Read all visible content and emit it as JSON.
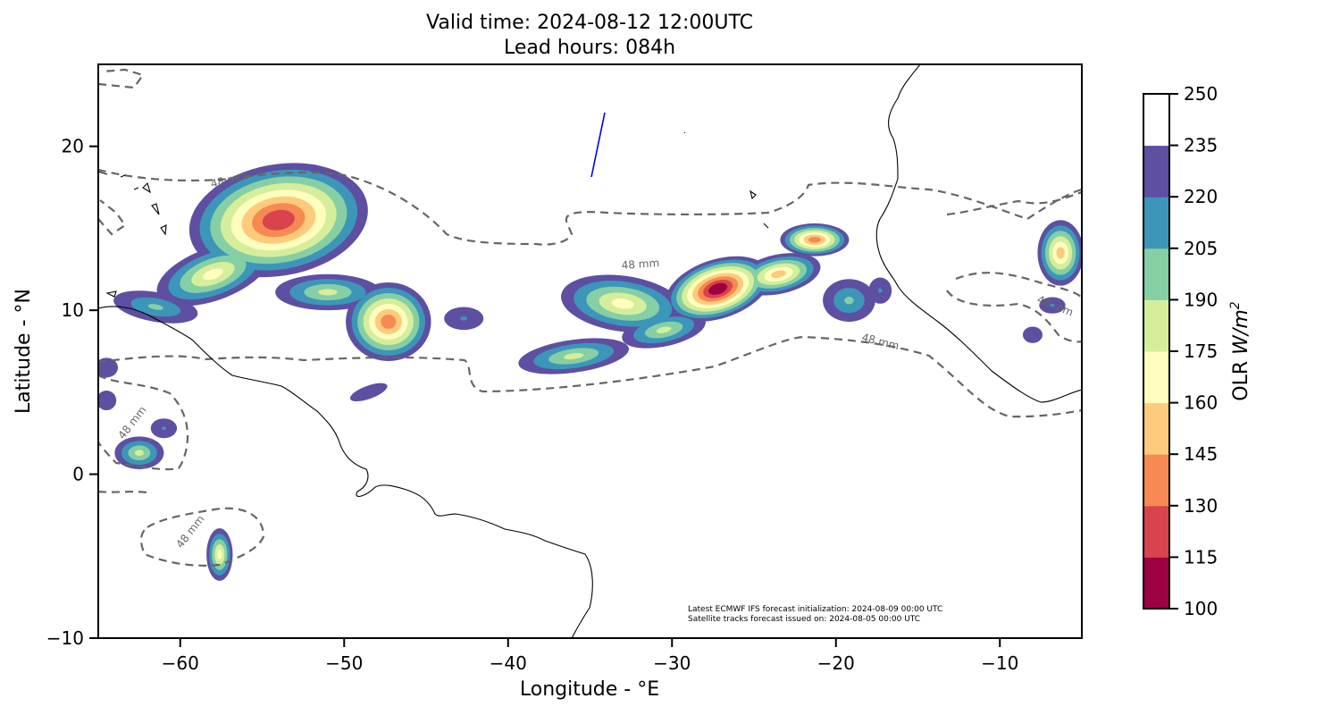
{
  "title": {
    "line1": "Valid time: 2024-08-12 12:00UTC",
    "line2": "Lead hours: 084h"
  },
  "map": {
    "extent": {
      "lon": [
        -65,
        -5
      ],
      "lat": [
        -10,
        25
      ]
    },
    "xlabel": "Longitude - °E",
    "ylabel": "Latitude - °N",
    "xticks": [
      -60,
      -50,
      -40,
      -30,
      -20,
      -10
    ],
    "yticks": [
      -10,
      0,
      10,
      20
    ],
    "xtick_labels": [
      "−60",
      "−50",
      "−40",
      "−30",
      "−20",
      "−10"
    ],
    "ytick_labels": [
      "−10",
      "0",
      "10",
      "20"
    ],
    "contour_label": "48 mm",
    "contour_color": "#666666",
    "coastline_color": "#000000",
    "track_color": "#0000ee",
    "notes": [
      "Latest ECMWF IFS forecast initialization: 2024-08-09 00:00 UTC",
      "Satellite tracks forecast issued on: 2024-08-05 00:00 UTC"
    ]
  },
  "colorbar": {
    "label": "OLR W/m²",
    "label_main": "OLR ",
    "label_unit": "W/m",
    "label_exp": "2",
    "levels": [
      100,
      115,
      130,
      145,
      160,
      175,
      190,
      205,
      220,
      235,
      250
    ],
    "level_labels": [
      "100",
      "115",
      "130",
      "145",
      "160",
      "175",
      "190",
      "205",
      "220",
      "235",
      "250"
    ],
    "colors": [
      "#9e0142",
      "#d8434e",
      "#f68a52",
      "#fdcb7b",
      "#feffbe",
      "#d6ee9b",
      "#86cfa5",
      "#3c96b9",
      "#5e4fa2",
      "#ffffff"
    ]
  },
  "chart_data": {
    "type": "heatmap",
    "title": "Valid time: 2024-08-12 12:00UTC\nLead hours: 084h",
    "xlabel": "Longitude - °E",
    "ylabel": "Latitude - °N",
    "xlim": [
      -65,
      -5
    ],
    "ylim": [
      -10,
      25
    ],
    "colorbar_label": "OLR W/m²",
    "levels": [
      100,
      115,
      130,
      145,
      160,
      175,
      190,
      205,
      220,
      235,
      250
    ],
    "contour_level": "48 mm",
    "grid": false,
    "features": [
      {
        "name": "convective cluster",
        "lon": -53.5,
        "lat": 16,
        "min_olr": 115
      },
      {
        "name": "convective cluster",
        "lon": -47,
        "lat": 8.5,
        "min_olr": 130
      },
      {
        "name": "convective cluster",
        "lon": -27,
        "lat": 11.5,
        "min_olr": 100
      },
      {
        "name": "convective cluster",
        "lon": -21.5,
        "lat": 14.5,
        "min_olr": 130
      },
      {
        "name": "convective cluster",
        "lon": -6.5,
        "lat": 13.5,
        "min_olr": 130
      },
      {
        "name": "convective cluster",
        "lon": -57.5,
        "lat": -5,
        "min_olr": 160
      },
      {
        "name": "satellite track",
        "lon": [
          -35,
          -34.2
        ],
        "lat": [
          18,
          22
        ]
      }
    ]
  }
}
